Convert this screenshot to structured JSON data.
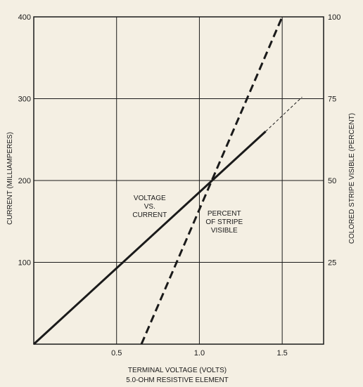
{
  "chart_data": {
    "type": "line",
    "xlabel": "TERMINAL VOLTAGE (VOLTS)",
    "xlabel_sub": "5.0-OHM RESISTIVE ELEMENT",
    "ylabel_left": "CURRENT (MILLIAMPERES)",
    "ylabel_right": "COLORED STRIPE VISIBLE (PERCENT)",
    "xlim": [
      0,
      1.75
    ],
    "ylim_left": [
      0,
      400
    ],
    "ylim_right": [
      0,
      100
    ],
    "x_ticks": [
      {
        "value": 0.5,
        "label": "0.5"
      },
      {
        "value": 1.0,
        "label": "1.0"
      },
      {
        "value": 1.5,
        "label": "1.5"
      }
    ],
    "y_left_ticks": [
      {
        "value": 100,
        "label": "100"
      },
      {
        "value": 200,
        "label": "200"
      },
      {
        "value": 300,
        "label": "300"
      },
      {
        "value": 400,
        "label": "400"
      }
    ],
    "y_right_ticks": [
      {
        "value": 25,
        "label": "25"
      },
      {
        "value": 50,
        "label": "50"
      },
      {
        "value": 75,
        "label": "75"
      },
      {
        "value": 100,
        "label": "100"
      }
    ],
    "grid": true,
    "series": [
      {
        "axis": "left",
        "style": "solid",
        "points": [
          [
            0,
            0
          ],
          [
            1.4,
            260
          ]
        ],
        "extension": {
          "style": "thin-dashed",
          "points": [
            [
              1.4,
              260
            ],
            [
              1.62,
              302
            ]
          ]
        }
      },
      {
        "axis": "right",
        "style": "dashed",
        "points": [
          [
            0.65,
            0
          ],
          [
            1.5,
            100
          ]
        ]
      }
    ],
    "annotations": [
      {
        "lines": [
          "VOLTAGE",
          "VS.",
          "CURRENT"
        ],
        "x": 0.7,
        "y": 176,
        "axis": "left"
      },
      {
        "lines": [
          "PERCENT",
          "OF STRIPE",
          "VISIBLE"
        ],
        "x": 1.15,
        "y": 157,
        "axis": "left"
      }
    ],
    "colors": {
      "line": "#1a1a1a",
      "grid": "#1a1a1a",
      "background": "#f4efe3"
    }
  }
}
